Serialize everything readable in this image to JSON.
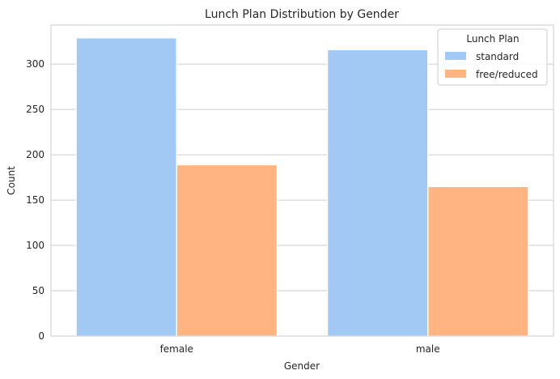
{
  "chart_data": {
    "type": "bar",
    "title": "Lunch Plan Distribution by Gender",
    "xlabel": "Gender",
    "ylabel": "Count",
    "categories": [
      "female",
      "male"
    ],
    "series": [
      {
        "name": "standard",
        "values": [
          329,
          316
        ],
        "color": "#a1c9f4"
      },
      {
        "name": "free/reduced",
        "values": [
          189,
          165
        ],
        "color": "#ffb482"
      }
    ],
    "ylim": [
      0,
      343
    ],
    "yticks": [
      0,
      50,
      100,
      150,
      200,
      250,
      300
    ],
    "grid": "horizontal",
    "legend": {
      "title": "Lunch Plan",
      "placement": "top-right"
    }
  }
}
